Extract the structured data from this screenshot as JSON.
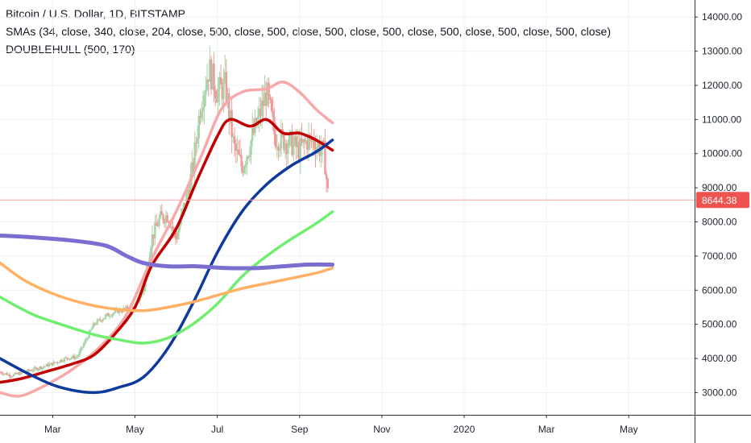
{
  "legend": {
    "symbol_line": "Bitcoin / U.S. Dollar, 1D, BITSTAMP",
    "sma_line": "SMAs (34, close, 340, close, 204, close, 500, close, 500, close, 500, close, 500, close, 500, close, 500, close, 500, close)",
    "hull_line": "DOUBLEHULL (500, 170)"
  },
  "chart_data": {
    "type": "line",
    "title": "Bitcoin / U.S. Dollar, 1D, BITSTAMP",
    "x_unit": "months since Jan 2019",
    "x_ticks": [
      {
        "x": 2,
        "label": "Mar"
      },
      {
        "x": 4,
        "label": "May"
      },
      {
        "x": 6,
        "label": "Jul"
      },
      {
        "x": 8,
        "label": "Sep"
      },
      {
        "x": 10,
        "label": "Nov"
      },
      {
        "x": 12,
        "label": "2020"
      },
      {
        "x": 14,
        "label": "Mar"
      },
      {
        "x": 16,
        "label": "May"
      }
    ],
    "xlim": [
      0.72,
      17.6
    ],
    "ylim": [
      2350,
      14500
    ],
    "y_ticks": [
      3000,
      4000,
      5000,
      6000,
      7000,
      8000,
      9000,
      10000,
      11000,
      12000,
      13000,
      14000
    ],
    "y_tick_labels": [
      "3000.00",
      "4000.00",
      "5000.00",
      "6000.00",
      "7000.00",
      "8000.00",
      "9000.00",
      "10000.00",
      "11000.00",
      "12000.00",
      "13000.00",
      "14000.00"
    ],
    "last_price": 8644.38,
    "last_price_label": "8644.38",
    "candles": {
      "up_color": "#a5d6a7",
      "down_color": "#ef9a9a",
      "close_path": [
        [
          0.72,
          3600
        ],
        [
          1.0,
          3500
        ],
        [
          1.3,
          3600
        ],
        [
          1.6,
          3700
        ],
        [
          2.0,
          3850
        ],
        [
          2.3,
          4000
        ],
        [
          2.6,
          4050
        ],
        [
          3.0,
          5000
        ],
        [
          3.3,
          5250
        ],
        [
          3.6,
          5400
        ],
        [
          4.0,
          5500
        ],
        [
          4.2,
          6000
        ],
        [
          4.4,
          7500
        ],
        [
          4.6,
          8100
        ],
        [
          4.8,
          8200
        ],
        [
          5.0,
          7500
        ],
        [
          5.2,
          8500
        ],
        [
          5.4,
          9500
        ],
        [
          5.6,
          11500
        ],
        [
          5.8,
          12500
        ],
        [
          6.0,
          11800
        ],
        [
          6.2,
          12000
        ],
        [
          6.4,
          10200
        ],
        [
          6.6,
          9600
        ],
        [
          6.8,
          10300
        ],
        [
          7.0,
          11000
        ],
        [
          7.2,
          11800
        ],
        [
          7.4,
          10500
        ],
        [
          7.6,
          10400
        ],
        [
          7.8,
          10300
        ],
        [
          8.0,
          10100
        ],
        [
          8.2,
          10400
        ],
        [
          8.4,
          10300
        ],
        [
          8.6,
          10000
        ],
        [
          8.7,
          8650
        ]
      ]
    },
    "series": [
      {
        "color": "#f7a8a8",
        "width": 3.5,
        "points": [
          [
            0.72,
            3000
          ],
          [
            1.2,
            2900
          ],
          [
            1.8,
            3200
          ],
          [
            2.5,
            3700
          ],
          [
            3.2,
            4400
          ],
          [
            3.8,
            5300
          ],
          [
            4.4,
            6900
          ],
          [
            5.0,
            8300
          ],
          [
            5.6,
            9900
          ],
          [
            6.1,
            11300
          ],
          [
            6.6,
            11800
          ],
          [
            7.2,
            11900
          ],
          [
            7.6,
            12100
          ],
          [
            8.0,
            11800
          ],
          [
            8.4,
            11300
          ],
          [
            8.8,
            10900
          ]
        ]
      },
      {
        "color": "#c00000",
        "width": 3.5,
        "points": [
          [
            0.72,
            3300
          ],
          [
            1.2,
            3400
          ],
          [
            1.8,
            3600
          ],
          [
            2.5,
            3850
          ],
          [
            3.0,
            4100
          ],
          [
            3.5,
            4700
          ],
          [
            4.0,
            5500
          ],
          [
            4.4,
            6700
          ],
          [
            5.0,
            7800
          ],
          [
            5.5,
            9200
          ],
          [
            6.0,
            10500
          ],
          [
            6.3,
            11000
          ],
          [
            6.8,
            10800
          ],
          [
            7.2,
            11000
          ],
          [
            7.6,
            10600
          ],
          [
            8.0,
            10600
          ],
          [
            8.4,
            10400
          ],
          [
            8.8,
            10100
          ]
        ]
      },
      {
        "color": "#0d3a9c",
        "width": 3.5,
        "points": [
          [
            0.72,
            4000
          ],
          [
            1.5,
            3500
          ],
          [
            2.2,
            3150
          ],
          [
            3.0,
            3000
          ],
          [
            3.6,
            3150
          ],
          [
            4.2,
            3450
          ],
          [
            4.8,
            4300
          ],
          [
            5.4,
            5600
          ],
          [
            6.0,
            7100
          ],
          [
            6.6,
            8300
          ],
          [
            7.2,
            9100
          ],
          [
            7.8,
            9650
          ],
          [
            8.4,
            10050
          ],
          [
            8.8,
            10400
          ]
        ]
      },
      {
        "color": "#6fee6f",
        "width": 3.5,
        "points": [
          [
            0.72,
            5800
          ],
          [
            1.5,
            5300
          ],
          [
            2.2,
            5000
          ],
          [
            3.0,
            4700
          ],
          [
            3.6,
            4550
          ],
          [
            4.2,
            4450
          ],
          [
            4.8,
            4600
          ],
          [
            5.4,
            5000
          ],
          [
            6.0,
            5600
          ],
          [
            6.6,
            6400
          ],
          [
            7.2,
            7000
          ],
          [
            7.8,
            7500
          ],
          [
            8.4,
            7950
          ],
          [
            8.8,
            8300
          ]
        ]
      },
      {
        "color": "#ffb065",
        "width": 3.5,
        "points": [
          [
            0.72,
            6800
          ],
          [
            1.3,
            6300
          ],
          [
            2.0,
            5900
          ],
          [
            2.8,
            5600
          ],
          [
            3.5,
            5450
          ],
          [
            4.2,
            5400
          ],
          [
            4.8,
            5500
          ],
          [
            5.4,
            5650
          ],
          [
            6.0,
            5850
          ],
          [
            6.6,
            6050
          ],
          [
            7.2,
            6200
          ],
          [
            7.8,
            6350
          ],
          [
            8.4,
            6500
          ],
          [
            8.8,
            6650
          ]
        ]
      },
      {
        "color": "#7b6ed1",
        "width": 5,
        "points": [
          [
            0.72,
            7600
          ],
          [
            1.5,
            7550
          ],
          [
            2.5,
            7450
          ],
          [
            3.3,
            7300
          ],
          [
            3.8,
            7000
          ],
          [
            4.2,
            6800
          ],
          [
            4.8,
            6700
          ],
          [
            5.5,
            6700
          ],
          [
            6.2,
            6650
          ],
          [
            7.0,
            6650
          ],
          [
            7.6,
            6700
          ],
          [
            8.2,
            6750
          ],
          [
            8.8,
            6750
          ]
        ]
      }
    ]
  },
  "colors": {
    "grid": "#eef0f3",
    "axis_line": "#333333",
    "axis_text": "#1f2430",
    "price_line": "#f7a1a1",
    "price_label_bg": "#ef5350",
    "price_label_text": "#ffffff"
  }
}
